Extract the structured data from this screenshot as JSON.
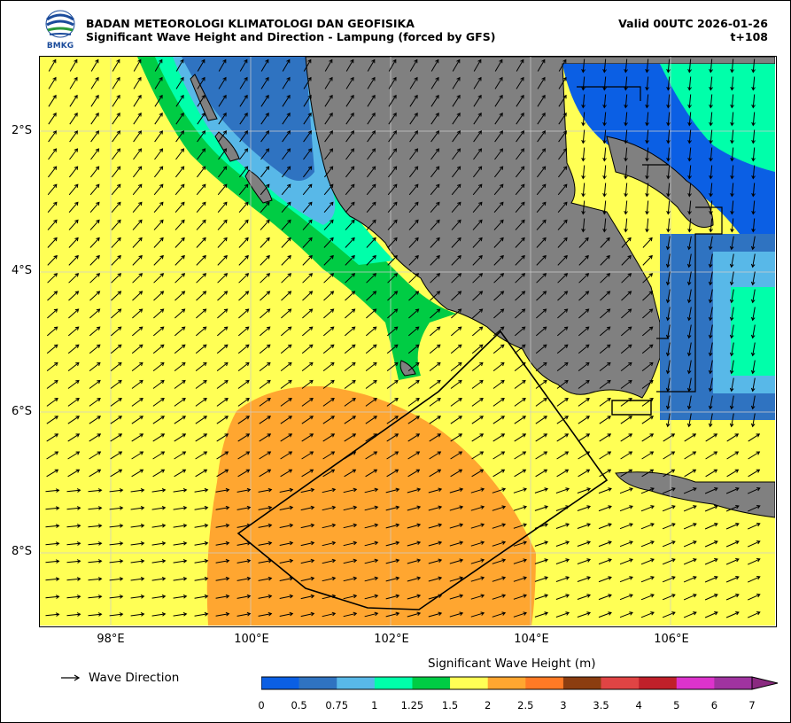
{
  "header": {
    "agency": "BADAN METEOROLOGI KLIMATOLOGI DAN GEOFISIKA",
    "product": "Significant Wave Height and Direction - Lampung (forced by GFS)",
    "valid": "Valid 00UTC 2026-01-26",
    "lead": "t+108",
    "logo_text": "BMKG"
  },
  "map": {
    "lat_labels": [
      "2°S",
      "4°S",
      "6°S",
      "8°S"
    ],
    "lon_labels": [
      "98°E",
      "100°E",
      "102°E",
      "104°E",
      "106°E"
    ],
    "land_color": "#808080",
    "sea_default_color": "#ffff55",
    "arrow_color": "#000000"
  },
  "legend": {
    "wave_direction_label": "Wave Direction"
  },
  "colorbar": {
    "title": "Significant Wave Height (m)",
    "ticks": [
      "0",
      "0.5",
      "0.75",
      "1",
      "1.25",
      "1.5",
      "2",
      "2.5",
      "3",
      "3.5",
      "4",
      "5",
      "6",
      "7"
    ],
    "colors": [
      "#0b5fe4",
      "#2f73c1",
      "#58b8e8",
      "#00ffaa",
      "#00cc44",
      "#ffff55",
      "#ffa630",
      "#ff7a25",
      "#8b3d10",
      "#e04444",
      "#c0202a",
      "#dd33cc",
      "#a033a0"
    ]
  }
}
